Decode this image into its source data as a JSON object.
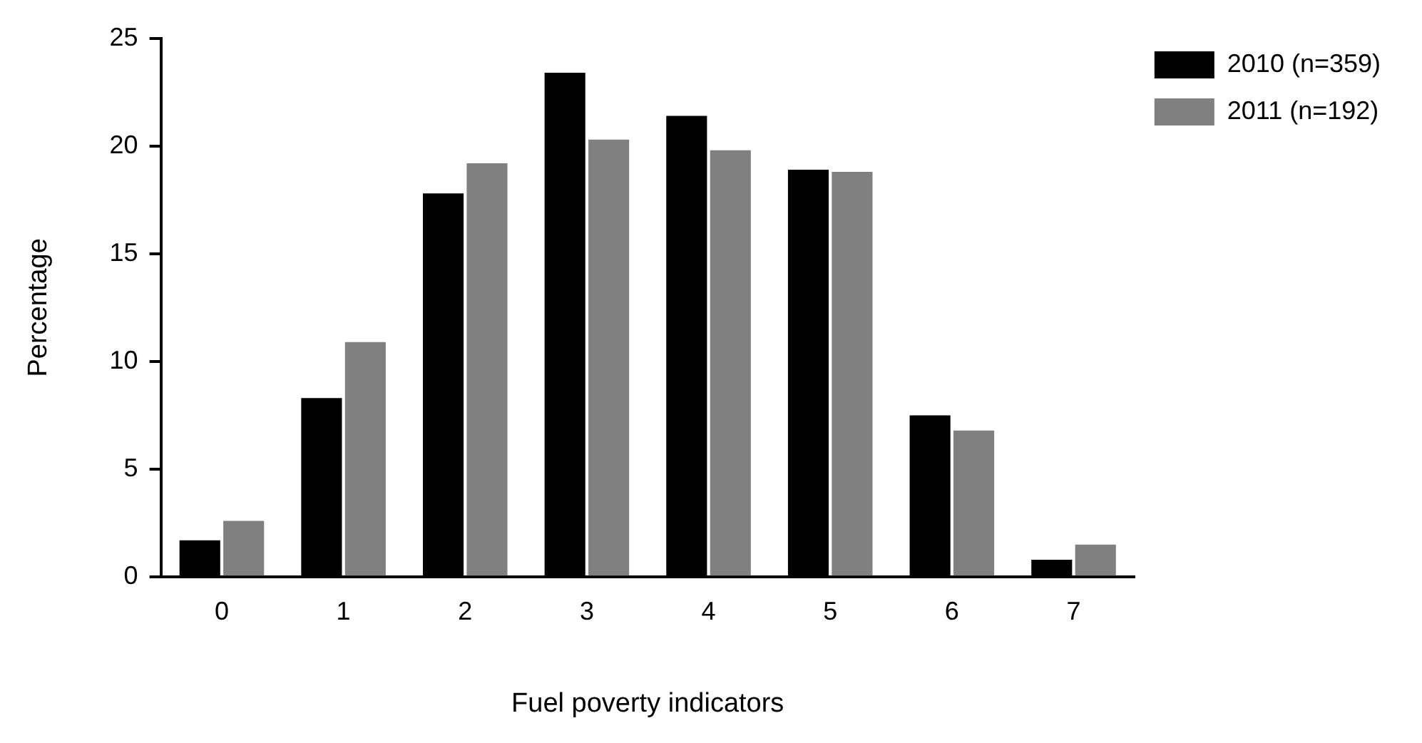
{
  "chart_data": {
    "type": "bar",
    "xlabel": "Fuel poverty indicators",
    "ylabel": "Percentage",
    "categories": [
      "0",
      "1",
      "2",
      "3",
      "4",
      "5",
      "6",
      "7"
    ],
    "series": [
      {
        "name": "2010 (n=359)",
        "color": "#000000",
        "values": [
          1.7,
          8.3,
          17.8,
          23.4,
          21.4,
          18.9,
          7.5,
          0.8
        ]
      },
      {
        "name": "2011 (n=192)",
        "color": "#808080",
        "values": [
          2.6,
          10.9,
          19.2,
          20.3,
          19.8,
          18.8,
          6.8,
          1.5
        ]
      }
    ],
    "ylim": [
      0,
      25
    ],
    "yticks": [
      0,
      5,
      10,
      15,
      20,
      25
    ],
    "grid": false,
    "legend": "top right"
  }
}
